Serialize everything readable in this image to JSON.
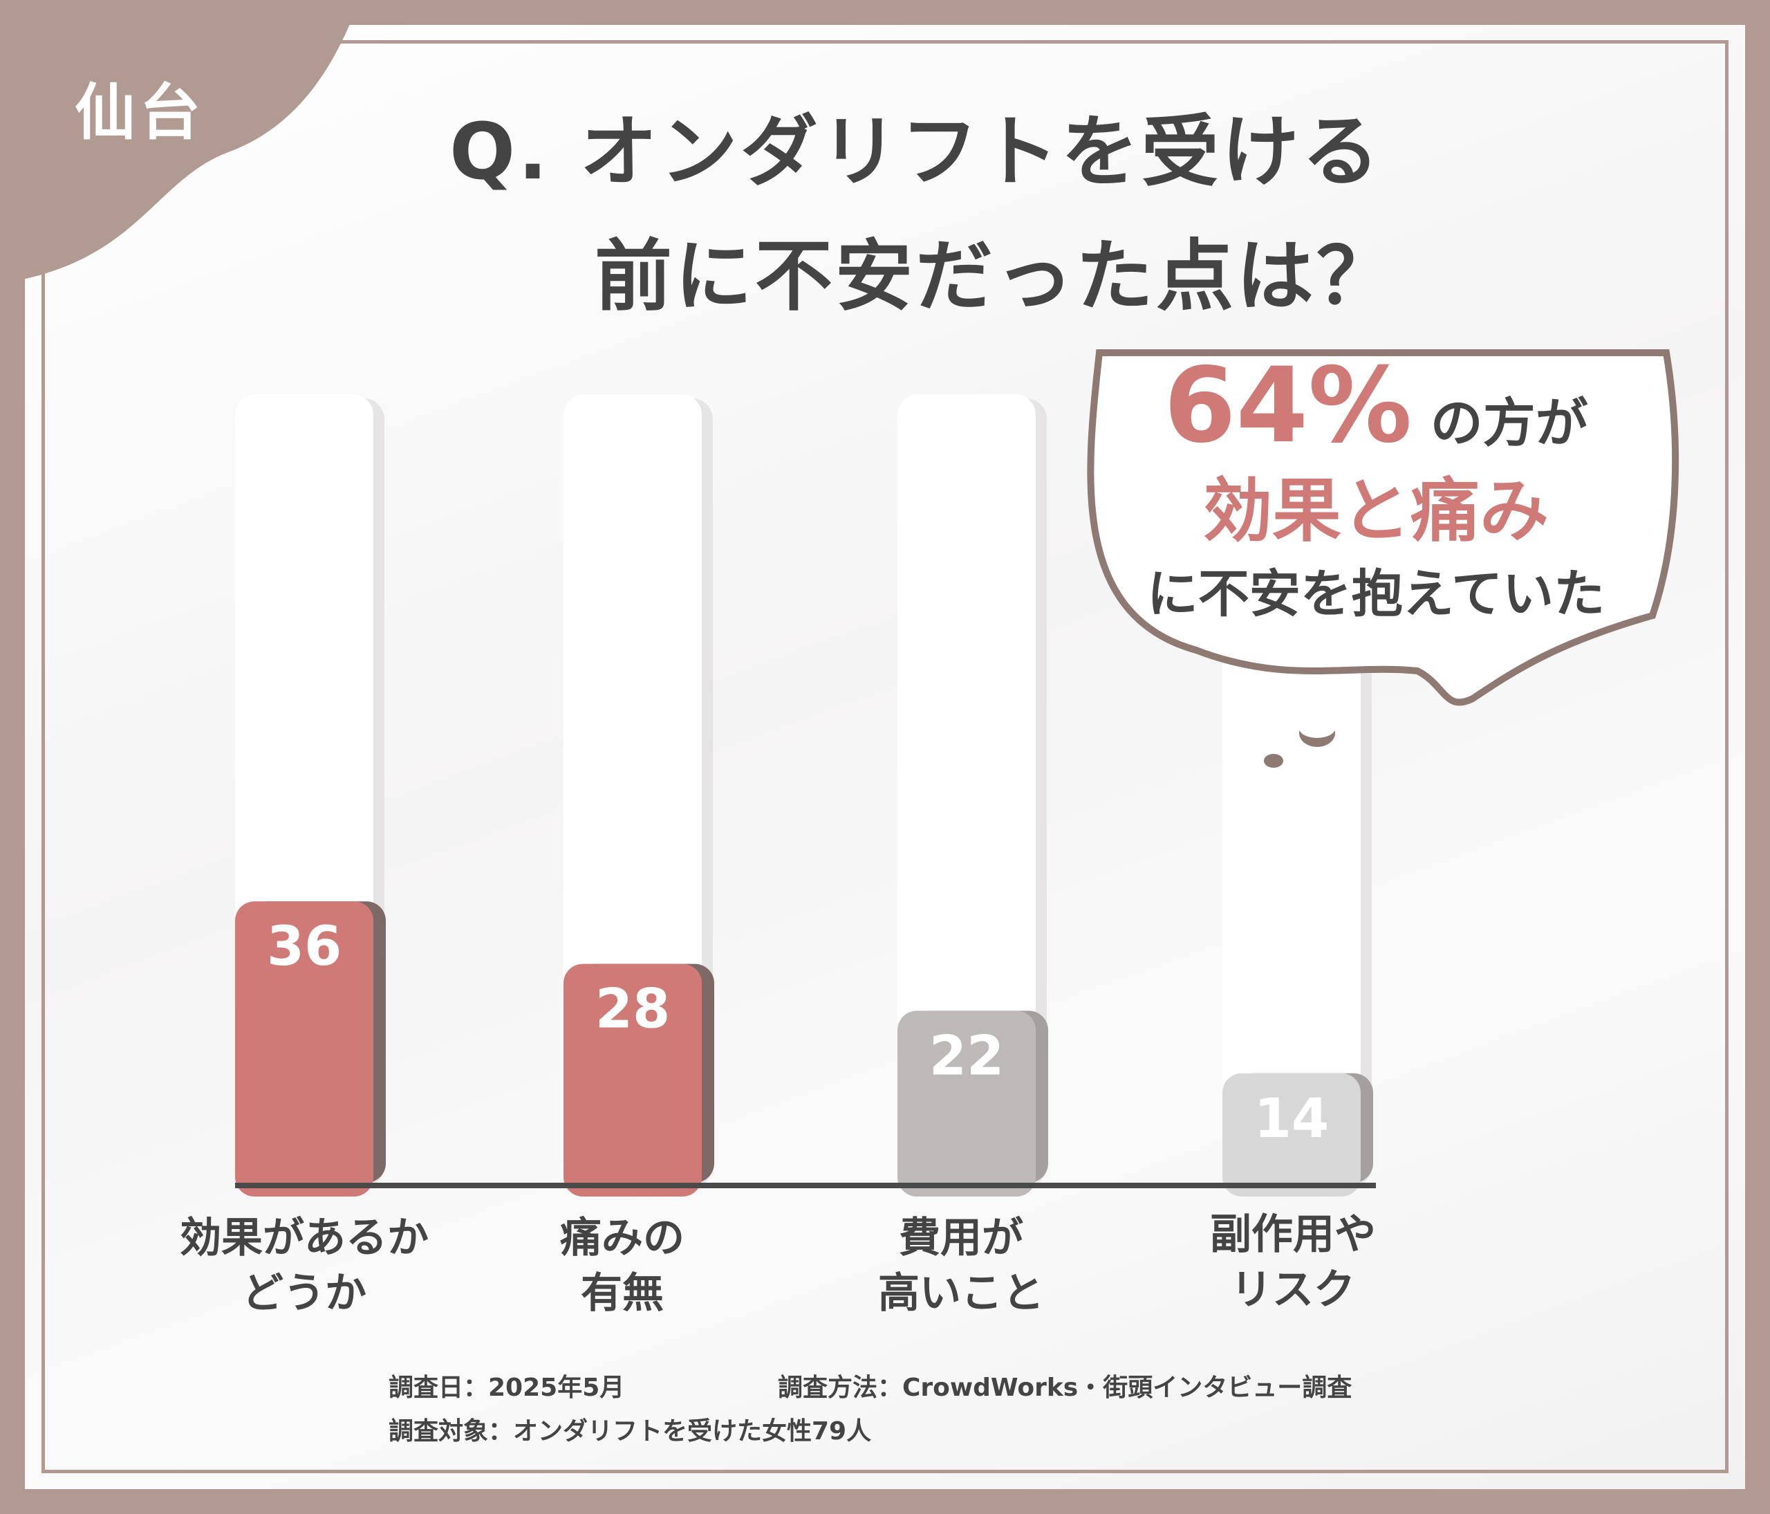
{
  "city": "仙台",
  "title": {
    "line1": "Q. オンダリフトを受ける",
    "line2": "前に不安だった点は？"
  },
  "callout": {
    "percent": "64%",
    "suffix": " の方が",
    "highlight": "効果と痛み",
    "tail": "に不安を抱えていた"
  },
  "chart_data": {
    "type": "bar",
    "categories": [
      "効果があるかどうか",
      "痛みの有無",
      "費用が高いこと",
      "副作用やリスク"
    ],
    "values": [
      36,
      28,
      22,
      14
    ],
    "bar_colors": [
      "#d07a78",
      "#d07a78",
      "#bdb9b8",
      "#d8d7d7"
    ],
    "label_colors": [
      "#ffffff",
      "#ffffff",
      "#ffffff",
      "#ffffff"
    ],
    "ylim": [
      0,
      100
    ],
    "grid": false
  },
  "category_labels": [
    [
      "効果があるか",
      "どうか"
    ],
    [
      "痛みの",
      "有無"
    ],
    [
      "費用が",
      "高いこと"
    ],
    [
      "副作用や",
      "リスク"
    ]
  ],
  "footer": {
    "date": "調査日：2025年5月",
    "method": "調査方法：CrowdWorks・街頭インタビュー調査",
    "target": "調査対象：オンダリフトを受けた女性79人"
  }
}
